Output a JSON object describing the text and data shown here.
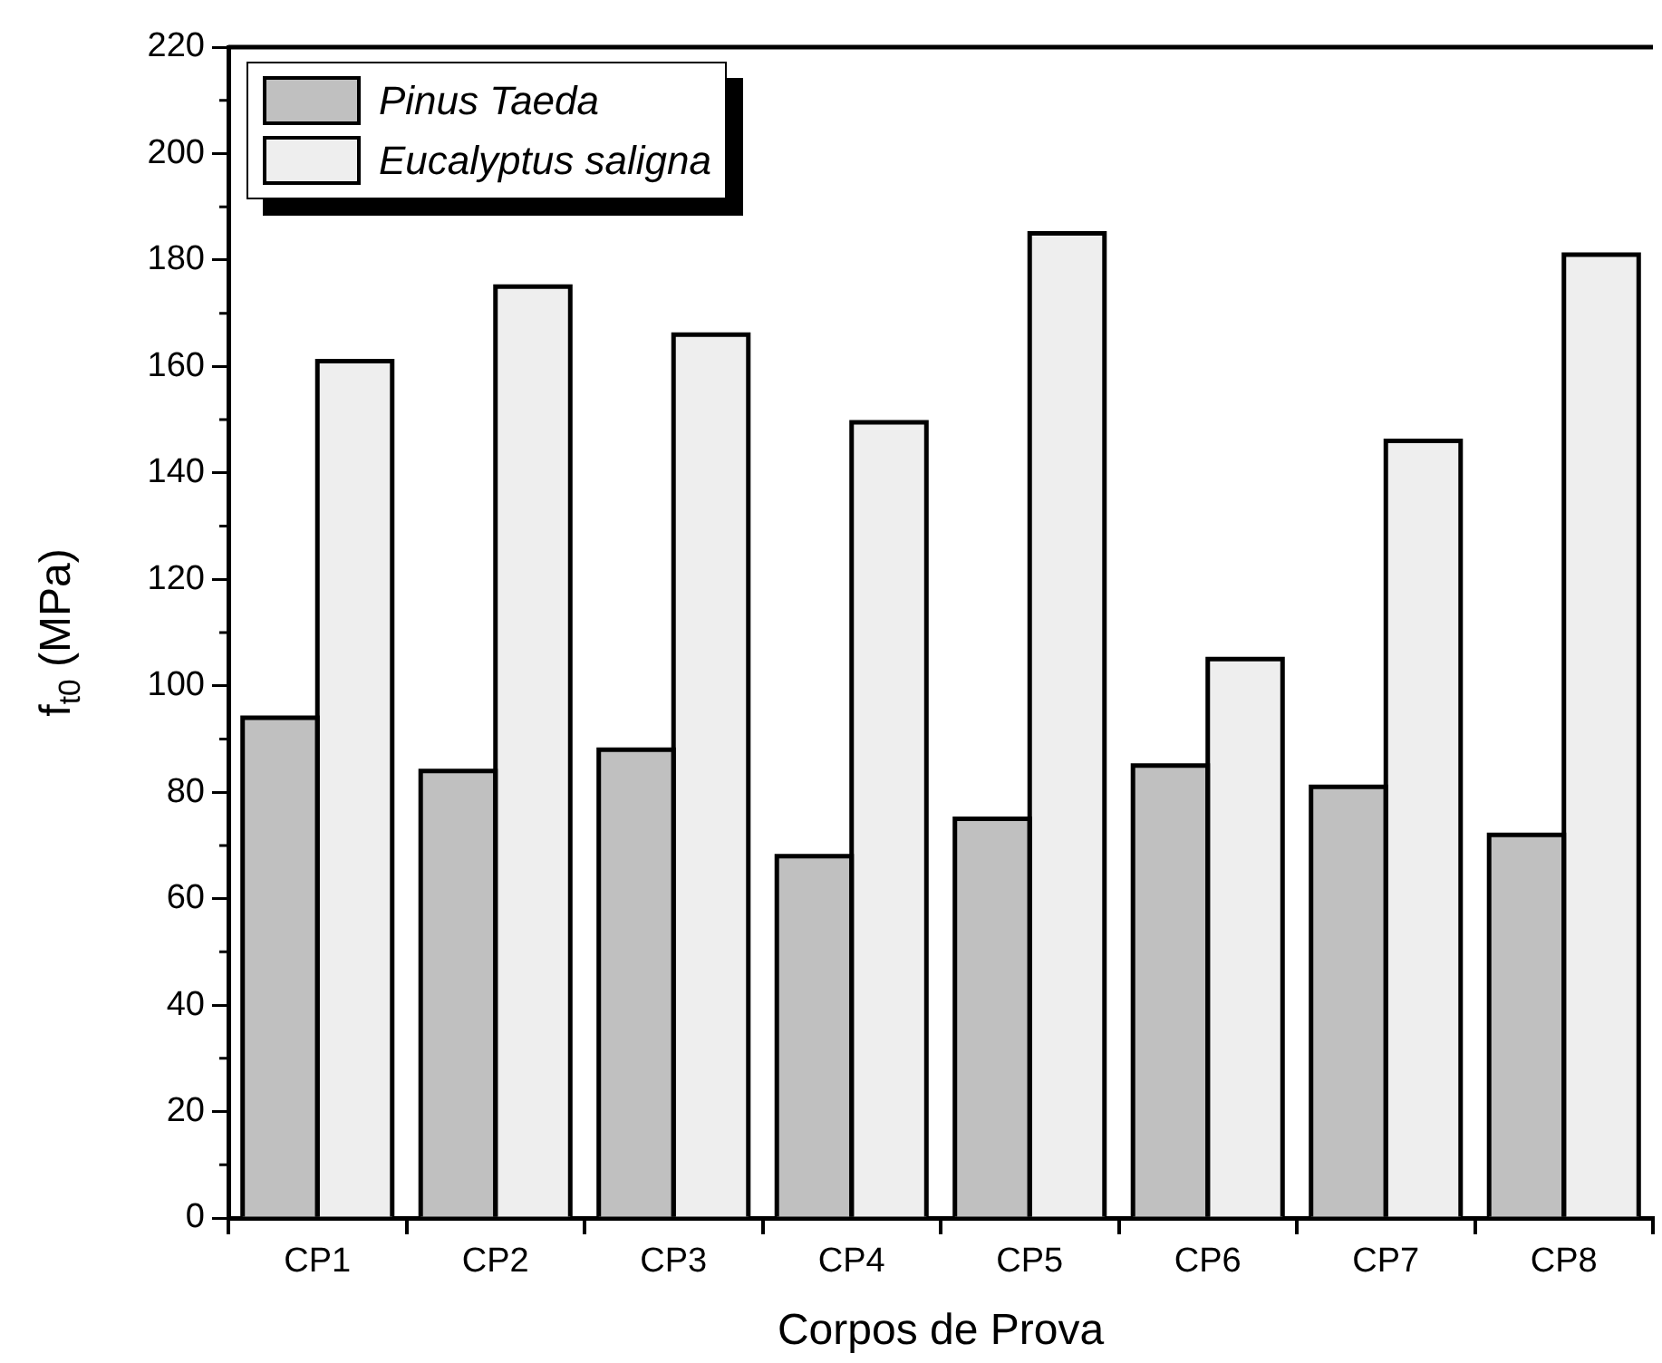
{
  "chart_data": {
    "type": "bar",
    "xlabel": "Corpos de Prova",
    "ylabel": "f$_{t0}$ (MPa)",
    "categories": [
      "CP1",
      "CP2",
      "CP3",
      "CP4",
      "CP5",
      "CP6",
      "CP7",
      "CP8"
    ],
    "series": [
      {
        "name": "Pinus Taeda",
        "color": "#c0c0c0",
        "values": [
          94,
          84,
          88,
          68,
          75,
          85,
          81,
          72
        ]
      },
      {
        "name": "Eucalyptus saligna",
        "color": "#eeeeee",
        "values": [
          161,
          175,
          166,
          149.5,
          185,
          105,
          146,
          181
        ]
      }
    ],
    "ylim": [
      0,
      220
    ],
    "yticks": [
      0,
      20,
      40,
      60,
      80,
      100,
      120,
      140,
      160,
      180,
      200,
      220
    ],
    "legend": "top left"
  }
}
